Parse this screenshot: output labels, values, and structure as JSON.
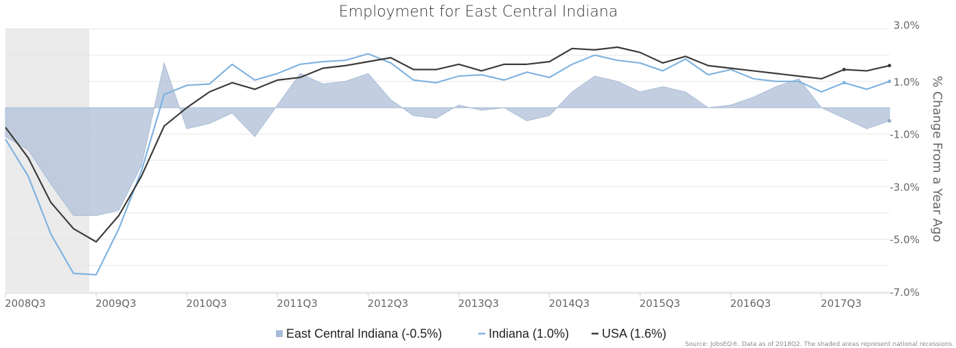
{
  "chart_data": {
    "type": "line",
    "title": "Employment for East Central Indiana",
    "ylabel": "% Change From a Year Ago",
    "ylim": [
      -7.0,
      3.0
    ],
    "yticks": [
      "3.0%",
      "1.0%",
      "-1.0%",
      "-3.0%",
      "-5.0%",
      "-7.0%"
    ],
    "ytick_values": [
      3.0,
      1.0,
      -1.0,
      -3.0,
      -5.0,
      -7.0
    ],
    "xtick_labels": [
      "2008Q3",
      "2009Q3",
      "2010Q3",
      "2011Q3",
      "2012Q3",
      "2013Q3",
      "2014Q3",
      "2015Q3",
      "2016Q3",
      "2017Q3"
    ],
    "x": [
      "2008Q3",
      "2008Q4",
      "2009Q1",
      "2009Q2",
      "2009Q3",
      "2009Q4",
      "2010Q1",
      "2010Q2",
      "2010Q3",
      "2010Q4",
      "2011Q1",
      "2011Q2",
      "2011Q3",
      "2011Q4",
      "2012Q1",
      "2012Q2",
      "2012Q3",
      "2012Q4",
      "2013Q1",
      "2013Q2",
      "2013Q3",
      "2013Q4",
      "2014Q1",
      "2014Q2",
      "2014Q3",
      "2014Q4",
      "2015Q1",
      "2015Q2",
      "2015Q3",
      "2015Q4",
      "2016Q1",
      "2016Q2",
      "2016Q3",
      "2016Q4",
      "2017Q1",
      "2017Q2",
      "2017Q3",
      "2017Q4",
      "2018Q1",
      "2018Q2"
    ],
    "recession": {
      "start": "2008Q3",
      "end": "2009Q2"
    },
    "series": [
      {
        "name": "East Central Indiana (-0.5%)",
        "style": "area",
        "color": "#b8c7dc",
        "values": [
          -1.1,
          -1.6,
          -2.9,
          -4.1,
          -4.1,
          -3.9,
          -2.2,
          1.7,
          -0.8,
          -0.6,
          -0.2,
          -1.1,
          0.1,
          1.3,
          0.9,
          1.0,
          1.3,
          0.3,
          -0.3,
          -0.4,
          0.1,
          -0.1,
          0.0,
          -0.5,
          -0.3,
          0.6,
          1.2,
          1.0,
          0.6,
          0.8,
          0.6,
          0.0,
          0.1,
          0.4,
          0.8,
          1.1,
          0.0,
          -0.4,
          -0.8,
          -0.5
        ]
      },
      {
        "name": "Indiana (1.0%)",
        "style": "line",
        "color": "#7fb3e0",
        "values": [
          -1.2,
          -2.6,
          -4.8,
          -6.3,
          -6.35,
          -4.6,
          -2.4,
          0.5,
          0.85,
          0.9,
          1.65,
          1.05,
          1.3,
          1.65,
          1.75,
          1.8,
          2.05,
          1.7,
          1.05,
          0.95,
          1.2,
          1.25,
          1.05,
          1.35,
          1.15,
          1.65,
          2.0,
          1.8,
          1.7,
          1.4,
          1.85,
          1.25,
          1.45,
          1.1,
          1.0,
          1.0,
          0.6,
          0.95,
          0.7,
          1.0
        ]
      },
      {
        "name": "USA (1.6%)",
        "style": "line",
        "color": "#3a3a3a",
        "values": [
          -0.75,
          -1.9,
          -3.6,
          -4.6,
          -5.1,
          -4.1,
          -2.6,
          -0.7,
          0.0,
          0.6,
          0.95,
          0.7,
          1.05,
          1.15,
          1.5,
          1.6,
          1.75,
          1.9,
          1.45,
          1.45,
          1.65,
          1.4,
          1.65,
          1.65,
          1.75,
          2.25,
          2.2,
          2.3,
          2.1,
          1.7,
          1.95,
          1.6,
          1.5,
          1.4,
          1.3,
          1.2,
          1.1,
          1.45,
          1.4,
          1.6
        ]
      }
    ],
    "legend_position": "bottom-center",
    "grid": true,
    "source": "Source: JobsEQ®. Data as of 2018Q2. The shaded areas represent national recessions."
  }
}
